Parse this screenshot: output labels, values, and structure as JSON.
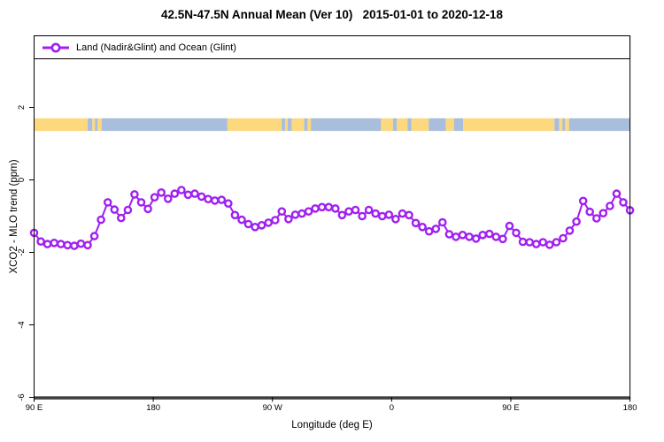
{
  "header": {
    "title": "42.5N-47.5N Annual Mean (Ver 10)   2015-01-01 to 2020-12-18"
  },
  "legend": {
    "label": "Land (Nadir&Glint) and Ocean (Glint)",
    "marker_icon": "open-circle-on-line-icon",
    "marker_color": "#A020F0"
  },
  "axes": {
    "x_label": "Longitude (deg E)",
    "y_label": "XCO2 - MLO trend (ppm)"
  },
  "chart_data": {
    "type": "line",
    "title": "42.5N-47.5N Annual Mean (Ver 10)   2015-01-01 to 2020-12-18",
    "legend_entries": [
      "Land (Nadir&Glint) and Ocean (Glint)"
    ],
    "xlabel": "Longitude (deg E)",
    "ylabel": "XCO2 - MLO trend (ppm)",
    "grid": false,
    "legend_position": "top-left-inside-box",
    "x_axis_degrees_span": [
      90,
      540
    ],
    "x_ticks": [
      {
        "lon": 90,
        "label": "90 E"
      },
      {
        "lon": 180,
        "label": "180"
      },
      {
        "lon": 270,
        "label": "90 W"
      },
      {
        "lon": 360,
        "label": "0"
      },
      {
        "lon": 450,
        "label": "90 E"
      },
      {
        "lon": 540,
        "label": "180"
      }
    ],
    "y_ticks": [
      2,
      0,
      -2,
      -4,
      -6
    ],
    "ylim": [
      -6.05,
      3.98
    ],
    "series": [
      {
        "name": "Land (Nadir&Glint) and Ocean (Glint)",
        "color": "#A020F0",
        "marker": "open-circle",
        "lon_start": 90,
        "lon_end": 540,
        "values": [
          -1.46,
          -1.7,
          -1.77,
          -1.74,
          -1.77,
          -1.8,
          -1.82,
          -1.76,
          -1.8,
          -1.55,
          -1.1,
          -0.62,
          -0.82,
          -1.05,
          -0.83,
          -0.4,
          -0.62,
          -0.8,
          -0.48,
          -0.35,
          -0.52,
          -0.38,
          -0.28,
          -0.41,
          -0.38,
          -0.46,
          -0.53,
          -0.57,
          -0.55,
          -0.65,
          -0.97,
          -1.1,
          -1.22,
          -1.3,
          -1.25,
          -1.18,
          -1.11,
          -0.87,
          -1.08,
          -0.96,
          -0.93,
          -0.87,
          -0.79,
          -0.75,
          -0.75,
          -0.79,
          -0.97,
          -0.87,
          -0.83,
          -1.0,
          -0.83,
          -0.93,
          -1.0,
          -0.96,
          -1.08,
          -0.93,
          -0.97,
          -1.19,
          -1.3,
          -1.42,
          -1.35,
          -1.17,
          -1.5,
          -1.57,
          -1.52,
          -1.57,
          -1.62,
          -1.52,
          -1.49,
          -1.57,
          -1.63,
          -1.27,
          -1.46,
          -1.71,
          -1.72,
          -1.77,
          -1.72,
          -1.79,
          -1.72,
          -1.61,
          -1.4,
          -1.15,
          -0.58,
          -0.88,
          -1.06,
          -0.92,
          -0.72,
          -0.38,
          -0.62,
          -0.84
        ]
      }
    ],
    "map_strip": {
      "description": "land-ocean latitude band strip",
      "y_top_value": 1.7,
      "y_bottom_value": 1.35,
      "land_color": "#FCD87E",
      "ocean_color": "#A8BEDC",
      "segments": [
        [
          90,
          130.5,
          "land"
        ],
        [
          130.5,
          134,
          "ocean"
        ],
        [
          134,
          136,
          "land"
        ],
        [
          136,
          138,
          "ocean"
        ],
        [
          138,
          141,
          "land"
        ],
        [
          141,
          236,
          "ocean"
        ],
        [
          236,
          277,
          "land"
        ],
        [
          277,
          279.5,
          "ocean"
        ],
        [
          279.5,
          281.5,
          "land"
        ],
        [
          281.5,
          284.5,
          "ocean"
        ],
        [
          284.5,
          294,
          "land"
        ],
        [
          294,
          296.5,
          "ocean"
        ],
        [
          296.5,
          299,
          "land"
        ],
        [
          299,
          352,
          "ocean"
        ],
        [
          352,
          361,
          "land"
        ],
        [
          361,
          364,
          "ocean"
        ],
        [
          364,
          372,
          "land"
        ],
        [
          372,
          375,
          "ocean"
        ],
        [
          375,
          388,
          "land"
        ],
        [
          388,
          401,
          "ocean"
        ],
        [
          401,
          407,
          "land"
        ],
        [
          407,
          414,
          "ocean"
        ],
        [
          414,
          483,
          "land"
        ],
        [
          483,
          486.5,
          "ocean"
        ],
        [
          486.5,
          489,
          "land"
        ],
        [
          489,
          491,
          "ocean"
        ],
        [
          491,
          494,
          "land"
        ],
        [
          494,
          540,
          "ocean"
        ]
      ]
    },
    "frame_color": "#000000",
    "baseline_color": "#4a4a4a"
  }
}
